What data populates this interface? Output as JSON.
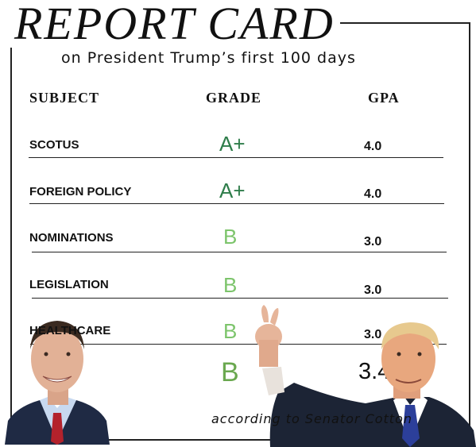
{
  "title": "REPORT CARD",
  "subtitle": "on President Trump’s first 100 days",
  "headers": {
    "subject": "SUBJECT",
    "grade": "GRADE",
    "gpa": "GPA"
  },
  "rows": [
    {
      "subject": "SCOTUS",
      "grade": "A+",
      "gpa": "4.0",
      "grade_color": "#2e7d4a"
    },
    {
      "subject": "FOREIGN POLICY",
      "grade": "A+",
      "gpa": "4.0",
      "grade_color": "#2e7d4a"
    },
    {
      "subject": "NOMINATIONS",
      "grade": "B",
      "gpa": "3.0",
      "grade_color": "#7cc46b"
    },
    {
      "subject": "LEGISLATION",
      "grade": "B",
      "gpa": "3.0",
      "grade_color": "#7cc46b"
    },
    {
      "subject": "HEALTHCARE",
      "grade": "B",
      "gpa": "3.0",
      "grade_color": "#7cc46b"
    }
  ],
  "overall": {
    "grade": "B",
    "gpa": "3.4",
    "grade_color": "#6aa84f"
  },
  "attribution": "according to Senator Cotton",
  "photos": {
    "left": "senator-cotton-photo",
    "right": "president-trump-photo"
  }
}
